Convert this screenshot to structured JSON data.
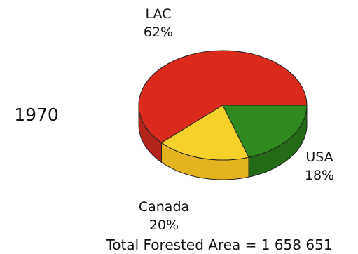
{
  "chart_data": {
    "type": "pie",
    "style": "3d",
    "year": "1970",
    "footer": "Total Forested Area = 1 658 651",
    "slices": [
      {
        "label": "LAC",
        "value": 62,
        "value_text": "62%",
        "color": "#d92a1c",
        "side_color": "#b3231a"
      },
      {
        "label": "USA",
        "value": 18,
        "value_text": "18%",
        "color": "#f7d12b",
        "side_color": "#e3b31f"
      },
      {
        "label": "Canada",
        "value": 20,
        "value_text": "20%",
        "color": "#2f8a1d",
        "side_color": "#246b16"
      }
    ],
    "legend": "none"
  }
}
